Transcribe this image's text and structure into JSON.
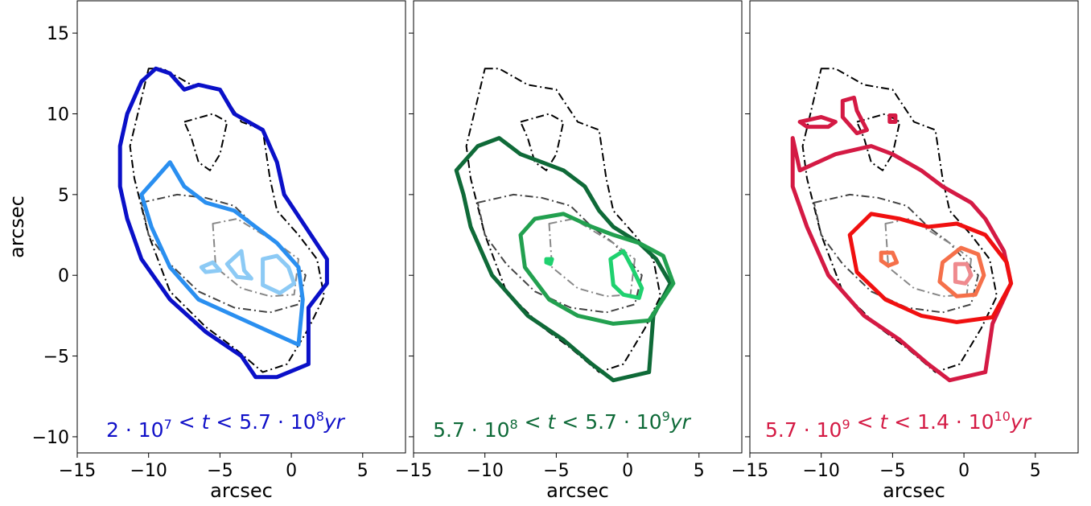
{
  "chart_data": [
    {
      "type": "contour",
      "xlabel": "arcsec",
      "ylabel": "arcsec",
      "xlim": [
        -15,
        8
      ],
      "ylim": [
        -11,
        17
      ],
      "xticks": [
        -15,
        -10,
        -5,
        0,
        5
      ],
      "yticks": [
        -10,
        -5,
        0,
        5,
        10,
        15
      ],
      "age_label": {
        "pre": "2 · 10",
        "exp1": "7",
        "mid": " < t < 5.7 · 10",
        "exp2": "8",
        "post": "yr",
        "color": "#1010c8"
      },
      "contours": [
        {
          "color": "#0a10c8",
          "level": "outer",
          "points": [
            [
              -12,
              8
            ],
            [
              -11.5,
              10
            ],
            [
              -10.5,
              12
            ],
            [
              -9.5,
              12.8
            ],
            [
              -8.5,
              12.5
            ],
            [
              -7.5,
              11.5
            ],
            [
              -6.5,
              11.8
            ],
            [
              -5,
              11.5
            ],
            [
              -4,
              10
            ],
            [
              -2,
              9
            ],
            [
              -1,
              7
            ],
            [
              -0.5,
              5
            ],
            [
              1,
              3
            ],
            [
              2.5,
              1
            ],
            [
              2.5,
              -0.5
            ],
            [
              1.2,
              -2
            ],
            [
              1.2,
              -5.5
            ],
            [
              -1,
              -6.3
            ],
            [
              -2.5,
              -6.3
            ],
            [
              -3.5,
              -5
            ],
            [
              -6,
              -3.5
            ],
            [
              -8.5,
              -1.5
            ],
            [
              -10.5,
              1
            ],
            [
              -11.5,
              3.5
            ],
            [
              -12,
              5.5
            ]
          ]
        },
        {
          "color": "#2a8ff0",
          "level": "mid",
          "points": [
            [
              -10.5,
              5
            ],
            [
              -9.5,
              6
            ],
            [
              -8.5,
              7
            ],
            [
              -7.5,
              5.5
            ],
            [
              -6,
              4.5
            ],
            [
              -4,
              4
            ],
            [
              -2.5,
              3
            ],
            [
              -1,
              2
            ],
            [
              0.5,
              0.5
            ],
            [
              0.8,
              -1.5
            ],
            [
              0.5,
              -4.3
            ],
            [
              -1.5,
              -3.5
            ],
            [
              -4,
              -2.5
            ],
            [
              -6.5,
              -1.5
            ],
            [
              -8.5,
              0.5
            ],
            [
              -9.8,
              3
            ]
          ]
        },
        {
          "color": "#8ccaf5",
          "level": "inner-1",
          "points": [
            [
              -2,
              1
            ],
            [
              -1,
              1.2
            ],
            [
              -0.2,
              0.5
            ],
            [
              0.2,
              -0.5
            ],
            [
              -0.8,
              -1.1
            ],
            [
              -2,
              -0.6
            ]
          ]
        },
        {
          "color": "#8ccaf5",
          "level": "inner-2",
          "points": [
            [
              -4.5,
              0.7
            ],
            [
              -3.5,
              1.5
            ],
            [
              -3.3,
              0.3
            ],
            [
              -2.8,
              -0.2
            ],
            [
              -3.8,
              -0.1
            ]
          ]
        },
        {
          "color": "#8ccaf5",
          "level": "inner-3",
          "points": [
            [
              -6.3,
              0.5
            ],
            [
              -5.5,
              0.8
            ],
            [
              -5,
              0.3
            ],
            [
              -6,
              0.2
            ]
          ]
        }
      ]
    },
    {
      "type": "contour",
      "xlabel": "arcsec",
      "ylabel": "",
      "xlim": [
        -15,
        8
      ],
      "ylim": [
        -11,
        17
      ],
      "xticks": [
        -15,
        -10,
        -5,
        0,
        5
      ],
      "yticks": [
        -10,
        -5,
        0,
        5,
        10,
        15
      ],
      "age_label": {
        "pre": "5.7 · 10",
        "exp1": "8",
        "mid": " < t < 5.7 · 10",
        "exp2": "9",
        "post": "yr",
        "color": "#0e6a38"
      },
      "contours": [
        {
          "color": "#0f6a38",
          "level": "outer",
          "points": [
            [
              -12,
              6.5
            ],
            [
              -10.5,
              8
            ],
            [
              -9,
              8.5
            ],
            [
              -7.5,
              7.5
            ],
            [
              -6,
              7
            ],
            [
              -4.5,
              6.5
            ],
            [
              -3,
              5.5
            ],
            [
              -2,
              4
            ],
            [
              -1,
              3
            ],
            [
              0.8,
              2
            ],
            [
              2,
              1
            ],
            [
              3,
              -0.5
            ],
            [
              1.8,
              -2.5
            ],
            [
              1.5,
              -6
            ],
            [
              -1,
              -6.5
            ],
            [
              -2.5,
              -5.5
            ],
            [
              -4.5,
              -4
            ],
            [
              -7,
              -2.5
            ],
            [
              -9.5,
              0
            ],
            [
              -11,
              3
            ],
            [
              -11.5,
              5
            ]
          ]
        },
        {
          "color": "#22a04f",
          "level": "mid",
          "points": [
            [
              -7.5,
              2.5
            ],
            [
              -6.5,
              3.5
            ],
            [
              -4.5,
              3.8
            ],
            [
              -2.5,
              3
            ],
            [
              -1,
              2.5
            ],
            [
              0.8,
              2
            ],
            [
              2.5,
              1.2
            ],
            [
              3.2,
              -0.5
            ],
            [
              1.5,
              -2.8
            ],
            [
              -1,
              -3
            ],
            [
              -3.5,
              -2.5
            ],
            [
              -5.5,
              -1.5
            ],
            [
              -7.2,
              0.5
            ]
          ]
        },
        {
          "color": "#1fd16f",
          "level": "inner",
          "points": [
            [
              -1.2,
              1
            ],
            [
              -0.3,
              1.5
            ],
            [
              0.3,
              0.5
            ],
            [
              1,
              -0.8
            ],
            [
              0.8,
              -1.4
            ],
            [
              -0.3,
              -1.2
            ],
            [
              -1,
              -0.6
            ]
          ]
        },
        {
          "color": "#1fd16f",
          "level": "dot",
          "points": [
            [
              -5.7,
              1
            ],
            [
              -5.3,
              1
            ],
            [
              -5.4,
              0.7
            ],
            [
              -5.7,
              0.8
            ]
          ]
        }
      ]
    },
    {
      "type": "contour",
      "xlabel": "arcsec",
      "ylabel": "",
      "xlim": [
        -15,
        8
      ],
      "ylim": [
        -11,
        17
      ],
      "xticks": [
        -15,
        -10,
        -5,
        0,
        5
      ],
      "yticks": [
        -10,
        -5,
        0,
        5,
        10,
        15
      ],
      "age_label": {
        "pre": "5.7 · 10",
        "exp1": "9",
        "mid": " < t < 1.4 · 10",
        "exp2": "10",
        "post": "yr",
        "color": "#d41a44"
      },
      "contours": [
        {
          "color": "#d41a44",
          "level": "outer",
          "points": [
            [
              -12,
              8.5
            ],
            [
              -11.5,
              6.5
            ],
            [
              -9,
              7.5
            ],
            [
              -6.5,
              8
            ],
            [
              -5,
              7.5
            ],
            [
              -4,
              7
            ],
            [
              -3,
              6.5
            ],
            [
              -1.5,
              5.5
            ],
            [
              0.5,
              4.5
            ],
            [
              1.5,
              3.5
            ],
            [
              2.8,
              1.5
            ],
            [
              3.3,
              -0.5
            ],
            [
              2,
              -3
            ],
            [
              1.5,
              -6
            ],
            [
              -1,
              -6.5
            ],
            [
              -2.5,
              -5.5
            ],
            [
              -4.5,
              -4
            ],
            [
              -7,
              -2.5
            ],
            [
              -9.5,
              0
            ],
            [
              -11,
              3
            ],
            [
              -12,
              5.5
            ]
          ]
        },
        {
          "color": "#f01010",
          "level": "mid",
          "points": [
            [
              -8,
              2.5
            ],
            [
              -6.5,
              3.8
            ],
            [
              -4.5,
              3.5
            ],
            [
              -2.5,
              3
            ],
            [
              -0.5,
              3.2
            ],
            [
              1.5,
              2.5
            ],
            [
              3,
              0.8
            ],
            [
              3.3,
              -0.5
            ],
            [
              2,
              -2.6
            ],
            [
              -0.5,
              -2.9
            ],
            [
              -3,
              -2.5
            ],
            [
              -5.5,
              -1.5
            ],
            [
              -7.5,
              0.2
            ]
          ]
        },
        {
          "color": "#f5704a",
          "level": "inner",
          "points": [
            [
              -1.5,
              0.8
            ],
            [
              -0.2,
              1.7
            ],
            [
              1,
              1.3
            ],
            [
              1.4,
              0
            ],
            [
              0.8,
              -1.2
            ],
            [
              -0.5,
              -1.3
            ],
            [
              -1.7,
              -0.4
            ]
          ]
        },
        {
          "color": "#ef8a8e",
          "level": "core",
          "points": [
            [
              -0.6,
              0.7
            ],
            [
              0.2,
              0.7
            ],
            [
              0.5,
              0
            ],
            [
              0.1,
              -0.5
            ],
            [
              -0.6,
              -0.4
            ]
          ]
        },
        {
          "color": "#f5704a",
          "level": "blob",
          "points": [
            [
              -5.8,
              1.4
            ],
            [
              -5,
              1.4
            ],
            [
              -4.7,
              0.8
            ],
            [
              -5.3,
              0.6
            ],
            [
              -5.8,
              0.9
            ]
          ]
        },
        {
          "color": "#d41a44",
          "level": "north-1",
          "points": [
            [
              -8.5,
              10.8
            ],
            [
              -7.7,
              11
            ],
            [
              -7.5,
              10.2
            ],
            [
              -6.8,
              9
            ],
            [
              -7.5,
              8.8
            ],
            [
              -8.5,
              9.8
            ]
          ]
        },
        {
          "color": "#d41a44",
          "level": "north-2",
          "points": [
            [
              -11.5,
              9.5
            ],
            [
              -10,
              9.8
            ],
            [
              -9,
              9.5
            ],
            [
              -9.5,
              9.2
            ],
            [
              -11,
              9.2
            ]
          ]
        },
        {
          "color": "#d41a44",
          "level": "north-3",
          "points": [
            [
              -5.2,
              9.9
            ],
            [
              -4.8,
              9.9
            ],
            [
              -4.8,
              9.5
            ],
            [
              -5.2,
              9.5
            ]
          ]
        }
      ]
    }
  ],
  "reference_contours": [
    {
      "color": "#000000",
      "points": [
        [
          -10,
          12.8
        ],
        [
          -9,
          12.8
        ],
        [
          -7,
          11.8
        ],
        [
          -5,
          11.5
        ],
        [
          -3.5,
          9.5
        ],
        [
          -2,
          9
        ],
        [
          -1.5,
          6
        ],
        [
          -1,
          4
        ],
        [
          0.5,
          2.5
        ],
        [
          1.8,
          1
        ],
        [
          2.3,
          -1.3
        ],
        [
          1.2,
          -3.3
        ],
        [
          -0.3,
          -5.5
        ],
        [
          -2,
          -6
        ],
        [
          -4,
          -4.5
        ],
        [
          -6,
          -3.2
        ],
        [
          -8.5,
          -1
        ],
        [
          -10,
          2.5
        ],
        [
          -11,
          6
        ],
        [
          -11.3,
          8
        ]
      ]
    },
    {
      "color": "#000000",
      "points": [
        [
          -7.5,
          9.5
        ],
        [
          -5.5,
          10
        ],
        [
          -4.5,
          9.5
        ],
        [
          -5,
          7.5
        ],
        [
          -5.7,
          6.5
        ],
        [
          -6.5,
          7
        ],
        [
          -7,
          8.5
        ]
      ]
    },
    {
      "color": "#444444",
      "points": [
        [
          -10.5,
          4.5
        ],
        [
          -8,
          5
        ],
        [
          -6,
          4.8
        ],
        [
          -4,
          4.3
        ],
        [
          -2.5,
          3
        ],
        [
          -1,
          2
        ],
        [
          1,
          0
        ],
        [
          0.5,
          -1.8
        ],
        [
          -1.5,
          -2.3
        ],
        [
          -4,
          -2
        ],
        [
          -6.5,
          -1
        ],
        [
          -8.5,
          0.7
        ],
        [
          -10,
          2.5
        ]
      ]
    },
    {
      "color": "#888888",
      "points": [
        [
          -5.5,
          3.2
        ],
        [
          -3.8,
          3.5
        ],
        [
          -2.5,
          2.8
        ],
        [
          -1,
          2
        ],
        [
          0.5,
          1
        ],
        [
          0.2,
          -1.2
        ],
        [
          -1.5,
          -1.3
        ],
        [
          -3.5,
          -0.8
        ],
        [
          -5.3,
          0.5
        ]
      ]
    }
  ]
}
